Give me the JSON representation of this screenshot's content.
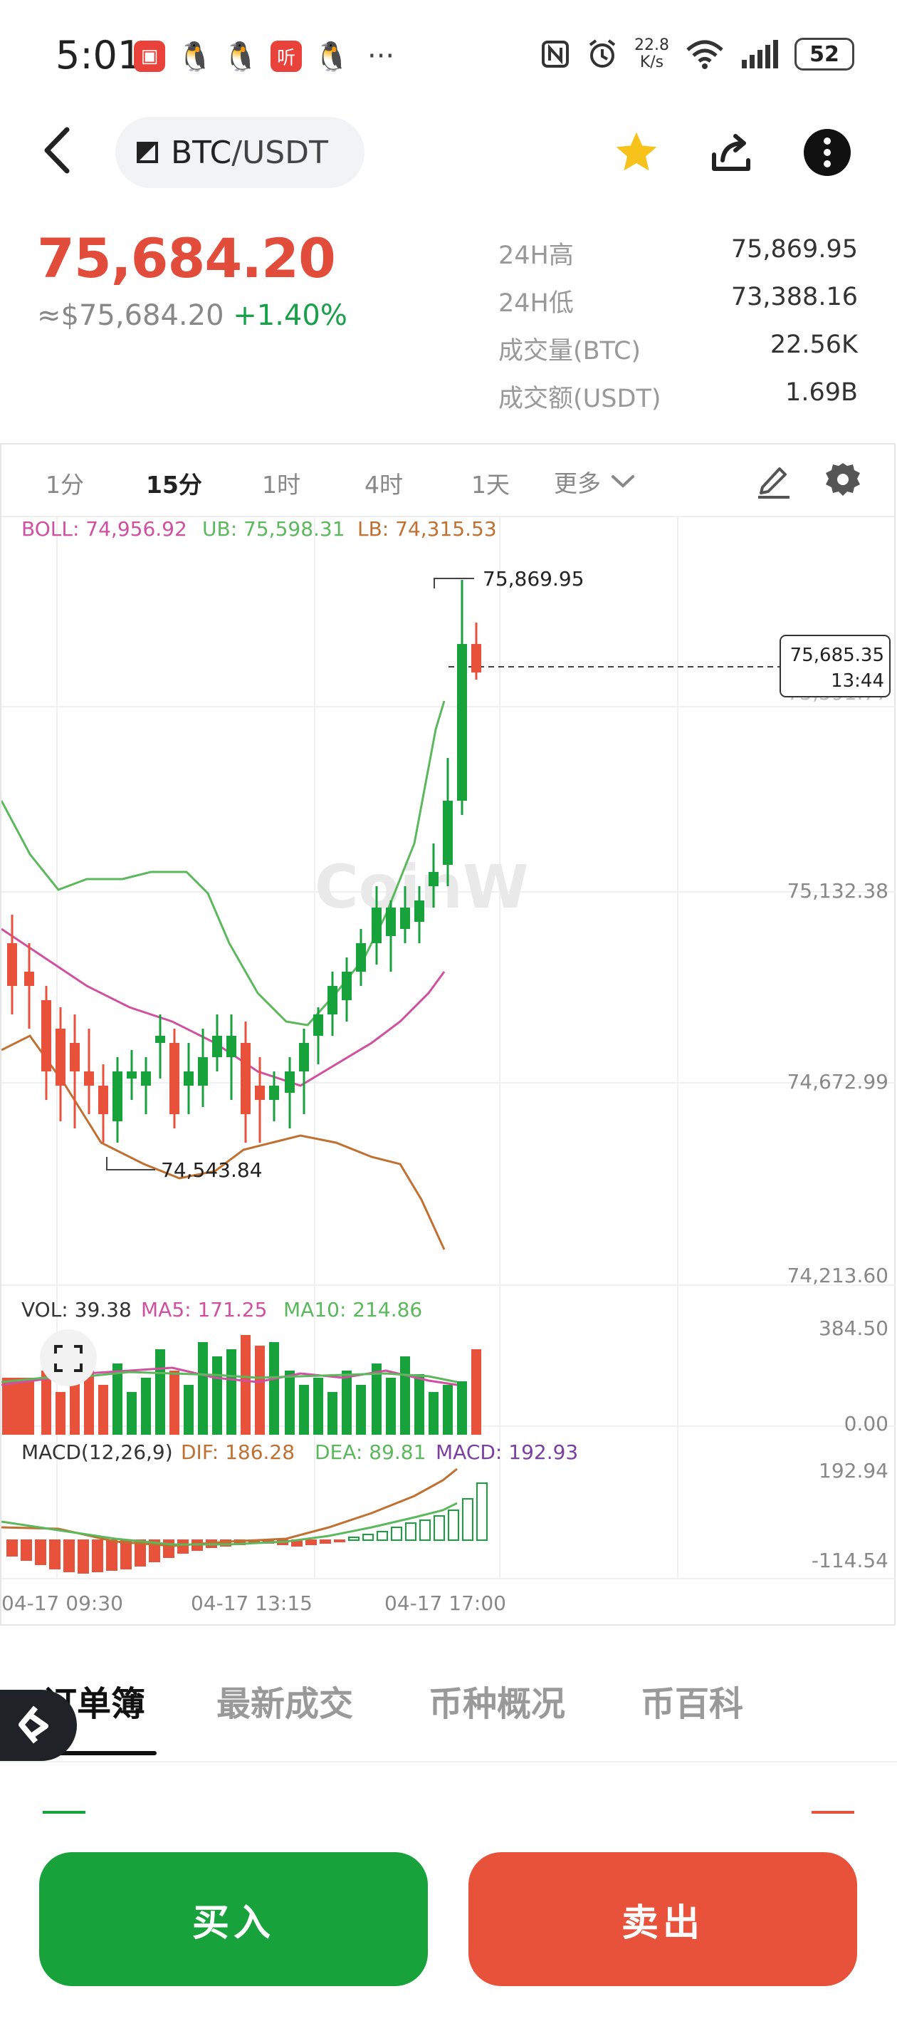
{
  "status_bar": {
    "time": "5:01",
    "net_speed_value": "22.8",
    "net_speed_unit": "K/s",
    "battery": "52",
    "app_icons": [
      "huawei-store-icon",
      "qq-icon",
      "qq-icon",
      "ting-icon",
      "qq-icon"
    ],
    "more": "···"
  },
  "header": {
    "pair_base": "BTC",
    "pair_sep": "/",
    "pair_quote": "USDT",
    "favorite_color": "#f7c21a"
  },
  "price": {
    "last": "75,684.20",
    "usd": "≈$75,684.20",
    "change": "+1.40%"
  },
  "stats": [
    {
      "label": "24H高",
      "value": "75,869.95"
    },
    {
      "label": "24H低",
      "value": "73,388.16"
    },
    {
      "label": "成交量(BTC)",
      "value": "22.56K"
    },
    {
      "label": "成交额(USDT)",
      "value": "1.69B"
    }
  ],
  "timeframes": [
    "1分",
    "15分",
    "1时",
    "4时",
    "1天"
  ],
  "active_timeframe": "15分",
  "more_label": "更多",
  "indicators": {
    "boll": "BOLL: 74,956.92",
    "ub": "UB: 75,598.31",
    "lb": "LB: 74,315.53",
    "vol": "VOL: 39.38",
    "ma5": "MA5: 171.25",
    "ma10": "MA10: 214.86",
    "macd_title": "MACD(12,26,9)",
    "dif": "DIF: 186.28",
    "dea": "DEA: 89.81",
    "macd": "MACD: 192.93"
  },
  "chart_data": {
    "type": "candlestick",
    "price_axis_labels": [
      "75,132.38",
      "74,672.99",
      "74,213.60"
    ],
    "high_marker": "75,869.95",
    "low_marker": "74,543.84",
    "current_price_tag": "75,685.35",
    "current_time_tag": "13:44",
    "hidden_axis_label": "75,591.77",
    "volume_axis": [
      "384.50",
      "0.00"
    ],
    "macd_axis": [
      "192.94",
      "-114.54"
    ],
    "x_labels": [
      "04-17 09:30",
      "04-17 13:15",
      "04-17 17:00"
    ],
    "watermark": "CoinW",
    "colors": {
      "up": "#17a23c",
      "down": "#e8513a",
      "boll": "#d050a0",
      "ub": "#5cb85c",
      "lb": "#c07030"
    }
  },
  "tabs": [
    "订单簿",
    "最新成交",
    "币种概况",
    "币百科"
  ],
  "active_tab": "订单簿",
  "buttons": {
    "buy": "买入",
    "sell": "卖出"
  }
}
